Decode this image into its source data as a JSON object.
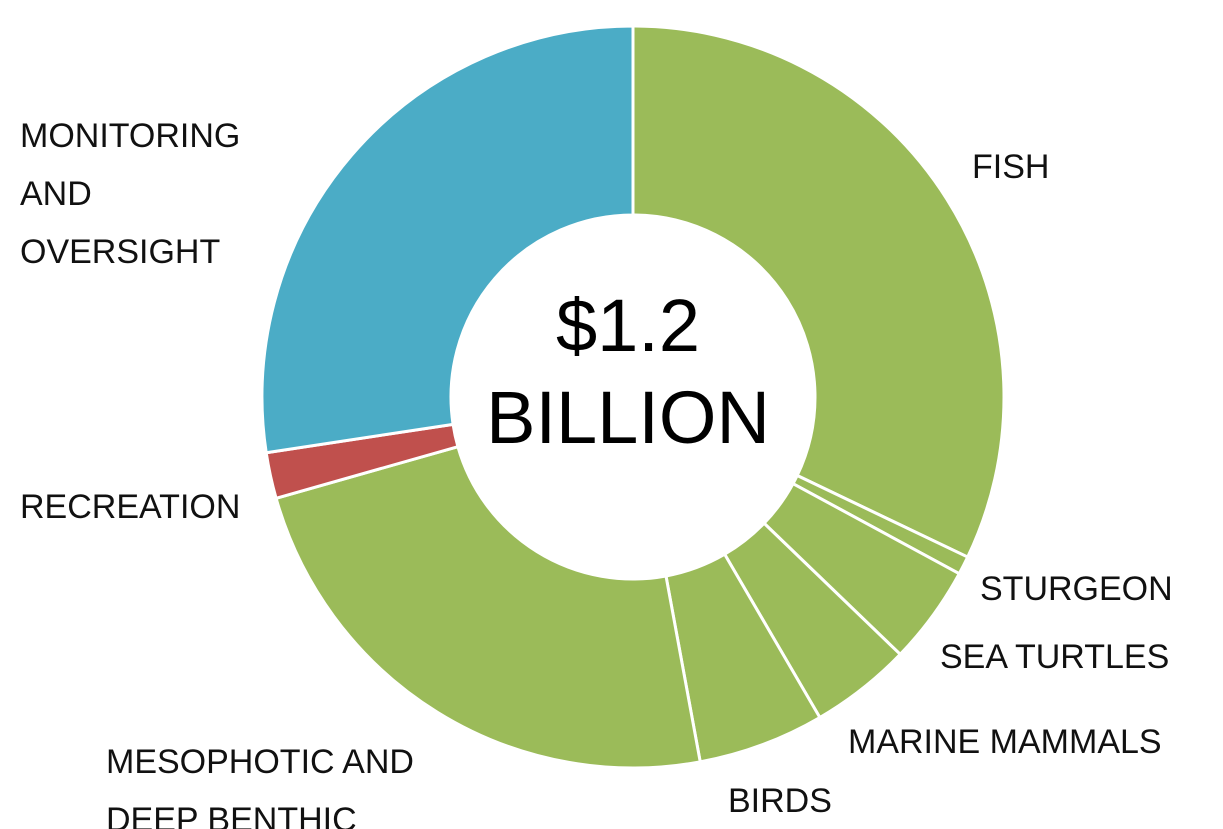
{
  "chart_data": {
    "type": "donut",
    "center_text": [
      "$1.2",
      "BILLION"
    ],
    "slices": [
      {
        "label": [
          "FISH"
        ],
        "value": 32.1,
        "color": "#9bbb59"
      },
      {
        "label": [
          "STURGEON"
        ],
        "value": 0.8,
        "color": "#9bbb59"
      },
      {
        "label": [
          "SEA TURTLES"
        ],
        "value": 4.3,
        "color": "#9bbb59"
      },
      {
        "label": [
          "MARINE MAMMALS"
        ],
        "value": 4.4,
        "color": "#9bbb59"
      },
      {
        "label": [
          "BIRDS"
        ],
        "value": 5.5,
        "color": "#9bbb59"
      },
      {
        "label": [
          "MESOPHOTIC AND",
          "DEEP BENTHIC"
        ],
        "value": 23.5,
        "color": "#9bbb59"
      },
      {
        "label": [
          "RECREATION"
        ],
        "value": 2.0,
        "color": "#c0504d"
      },
      {
        "label": [
          "MONITORING",
          "AND",
          "OVERSIGHT"
        ],
        "value": 27.4,
        "color": "#4bacc6"
      }
    ]
  }
}
